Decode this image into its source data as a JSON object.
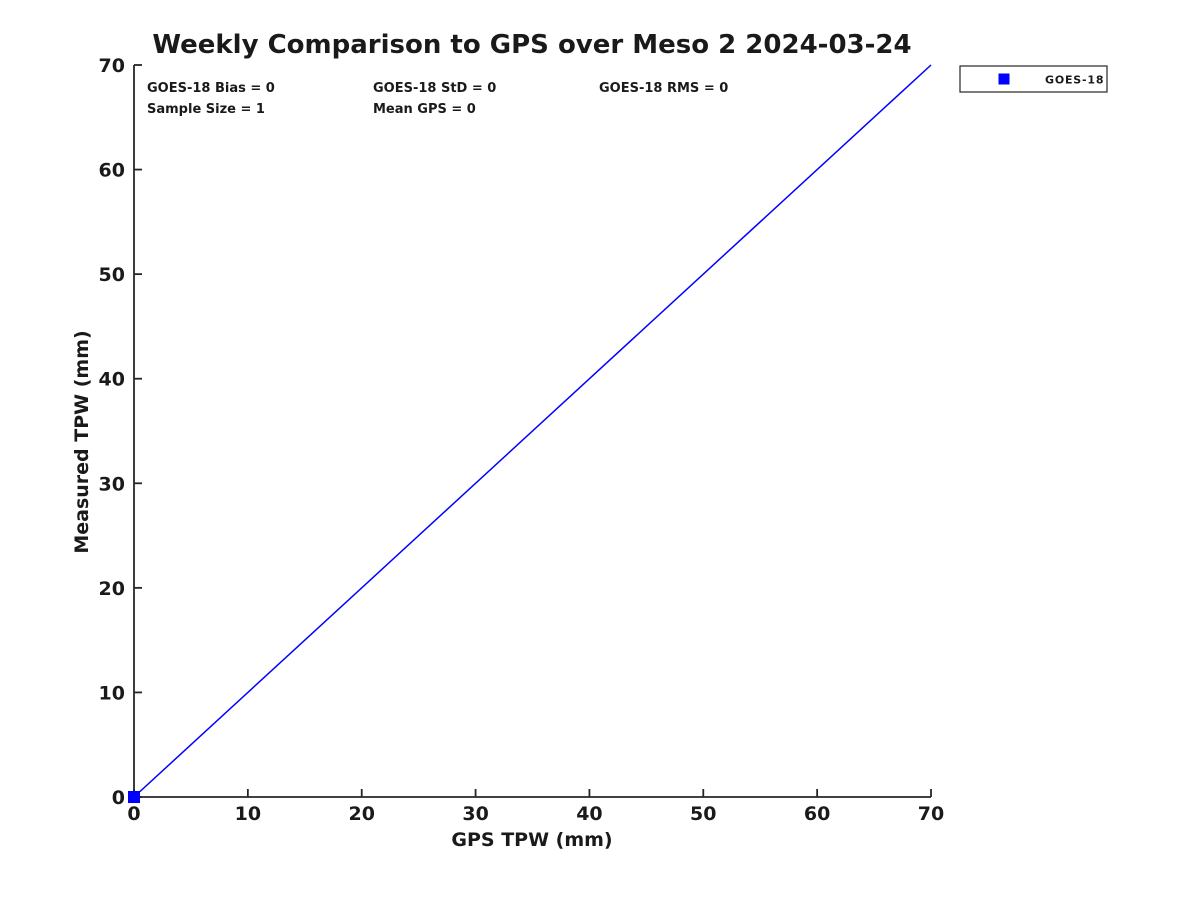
{
  "page": {
    "background": "#ffffff"
  },
  "chart_data": {
    "type": "scatter",
    "title": "Weekly Comparison to GPS over Meso 2 2024-03-24",
    "xlabel": "GPS TPW (mm)",
    "ylabel": "Measured TPW (mm)",
    "xlim": [
      0,
      70
    ],
    "ylim": [
      0,
      70
    ],
    "xticks": [
      0,
      10,
      20,
      30,
      40,
      50,
      60,
      70
    ],
    "yticks": [
      0,
      10,
      20,
      30,
      40,
      50,
      60,
      70
    ],
    "grid": false,
    "axis_color": "#262626",
    "text_color": "#1a1a1a",
    "series": [
      {
        "name": "GOES-18",
        "type": "scatter",
        "marker": "square",
        "color": "#0000ff",
        "points": [
          [
            0,
            0
          ]
        ]
      }
    ],
    "reference_line": {
      "from": [
        0,
        0
      ],
      "to": [
        70,
        70
      ],
      "color": "#0000ff"
    },
    "legend": {
      "position": "top-right",
      "entries": [
        {
          "label": "GOES-18",
          "color": "#0000ff",
          "marker": "square"
        }
      ]
    },
    "annotations": {
      "bias": "GOES-18 Bias = 0",
      "std": "GOES-18 StD = 0",
      "rms": "GOES-18 RMS = 0",
      "sample_size": "Sample Size = 1",
      "mean_gps": "Mean GPS = 0"
    }
  }
}
